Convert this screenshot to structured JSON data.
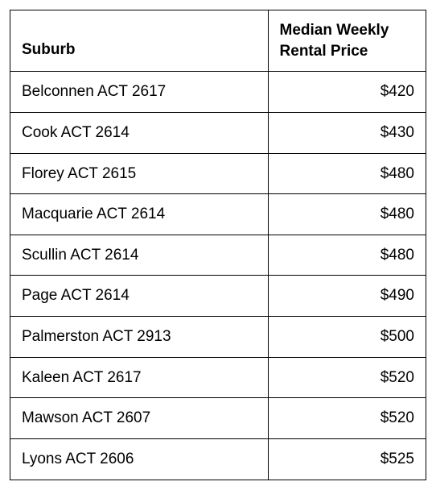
{
  "table": {
    "columns": [
      "Suburb",
      "Median Weekly Rental Price"
    ],
    "rows": [
      {
        "suburb": "Belconnen ACT 2617",
        "price": "$420"
      },
      {
        "suburb": "Cook ACT 2614",
        "price": "$430"
      },
      {
        "suburb": "Florey ACT 2615",
        "price": "$480"
      },
      {
        "suburb": "Macquarie ACT 2614",
        "price": "$480"
      },
      {
        "suburb": "Scullin ACT 2614",
        "price": "$480"
      },
      {
        "suburb": "Page ACT 2614",
        "price": "$490"
      },
      {
        "suburb": "Palmerston ACT 2913",
        "price": "$500"
      },
      {
        "suburb": "Kaleen ACT 2617",
        "price": "$520"
      },
      {
        "suburb": "Mawson ACT 2607",
        "price": "$520"
      },
      {
        "suburb": "Lyons ACT 2606",
        "price": "$525"
      }
    ],
    "border_color": "#000000",
    "background_color": "#ffffff",
    "font_size": 19,
    "header_font_weight": "bold"
  }
}
